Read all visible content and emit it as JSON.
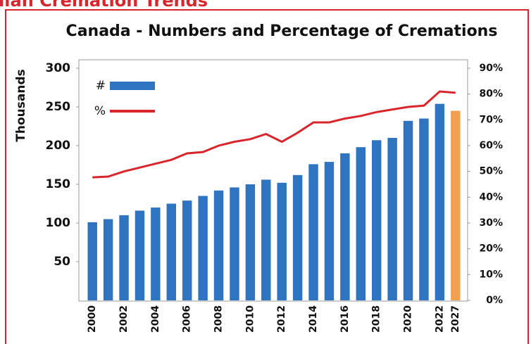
{
  "header": {
    "title": "Canadian Cremation Trends"
  },
  "chart_data": {
    "type": "bar",
    "title": "Canada - Numbers and Percentage of Cremations",
    "y_label": "Thousands",
    "categories": [
      "2000",
      null,
      "2002",
      null,
      "2004",
      null,
      "2006",
      null,
      "2008",
      null,
      "2010",
      null,
      "2012",
      null,
      "2014",
      null,
      "2016",
      null,
      "2018",
      null,
      "2020",
      null,
      "2022",
      "2027"
    ],
    "series": [
      {
        "name": "#",
        "type": "bar",
        "color": "#2f74c0",
        "colors": [
          "#2f74c0",
          "#2f74c0",
          "#2f74c0",
          "#2f74c0",
          "#2f74c0",
          "#2f74c0",
          "#2f74c0",
          "#2f74c0",
          "#2f74c0",
          "#2f74c0",
          "#2f74c0",
          "#2f74c0",
          "#2f74c0",
          "#2f74c0",
          "#2f74c0",
          "#2f74c0",
          "#2f74c0",
          "#2f74c0",
          "#2f74c0",
          "#2f74c0",
          "#2f74c0",
          "#2f74c0",
          "#2f74c0",
          "#f0a050"
        ],
        "values": [
          101,
          105,
          110,
          116,
          120,
          125,
          129,
          135,
          142,
          146,
          150,
          156,
          152,
          162,
          176,
          179,
          190,
          198,
          207,
          210,
          232,
          235,
          254,
          245
        ]
      },
      {
        "name": "%",
        "type": "line",
        "axis": "y2",
        "color": "#d8262c",
        "values": [
          47.7,
          48,
          50,
          51.5,
          53,
          54.5,
          57,
          57.5,
          60,
          61.5,
          62.5,
          64.5,
          61.5,
          65,
          69,
          69,
          70.5,
          71.5,
          73,
          74,
          75,
          75.5,
          81,
          80.5
        ]
      }
    ],
    "ylim": [
      0,
      300
    ],
    "yticks": [
      50,
      100,
      150,
      200,
      250,
      300
    ],
    "y2lim": [
      0,
      90
    ],
    "y2ticks": [
      {
        "value": 0,
        "label": "0%"
      },
      {
        "value": 10,
        "label": "10%"
      },
      {
        "value": 20,
        "label": "20%"
      },
      {
        "value": 30,
        "label": "30%"
      },
      {
        "value": 40,
        "label": "40%"
      },
      {
        "value": 50,
        "label": "50%"
      },
      {
        "value": 60,
        "label": "60%"
      },
      {
        "value": 70,
        "label": "70%"
      },
      {
        "value": 80,
        "label": "80%"
      },
      {
        "value": 90,
        "label": "90%"
      }
    ],
    "legend": "upper left",
    "grid": false
  }
}
